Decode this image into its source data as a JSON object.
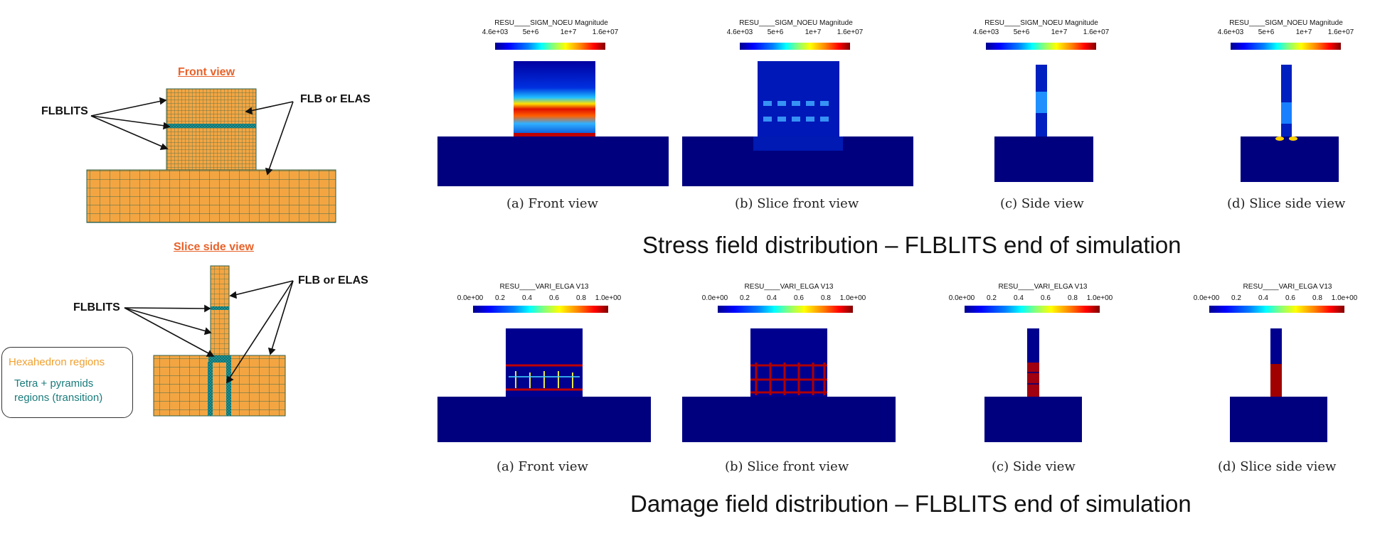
{
  "left": {
    "front_title": "Front view",
    "slice_title": "Slice side view",
    "flblits_label": "FLBLITS",
    "flb_label": "FLB or ELAS",
    "legend": {
      "hexa": "Hexahedron regions",
      "tetra_line1": "Tetra + pyramids",
      "tetra_line2": "regions (transition)"
    },
    "colors": {
      "mesh_fill": "#f3a542",
      "mesh_line": "#2e6f5e",
      "transition": "#1a8f8f",
      "title": "#e8622a"
    }
  },
  "stress": {
    "section_title": "Stress field distribution – FLBLITS end of simulation",
    "colorbar_title": "RESU____SIGM_NOEU Magnitude",
    "ticks": [
      "4.6e+03",
      "5e+6",
      "1e+7",
      "1.6e+07"
    ],
    "captions": [
      "(a)  Front view",
      "(b)  Slice front view",
      "(c)  Side view",
      "(d)  Slice side view"
    ]
  },
  "damage": {
    "section_title": "Damage field distribution – FLBLITS end of simulation",
    "colorbar_title": "RESU____VARI_ELGA V13",
    "ticks": [
      "0.0e+00",
      "0.2",
      "0.4",
      "0.6",
      "0.8",
      "1.0e+00"
    ],
    "captions": [
      "(a)  Front view",
      "(b)  Slice front view",
      "(c)  Side view",
      "(d)  Slice side view"
    ]
  },
  "colormap": [
    "#00008f",
    "#0000ff",
    "#0080ff",
    "#00ffff",
    "#ffff00",
    "#ff8000",
    "#ff0000",
    "#800000"
  ]
}
